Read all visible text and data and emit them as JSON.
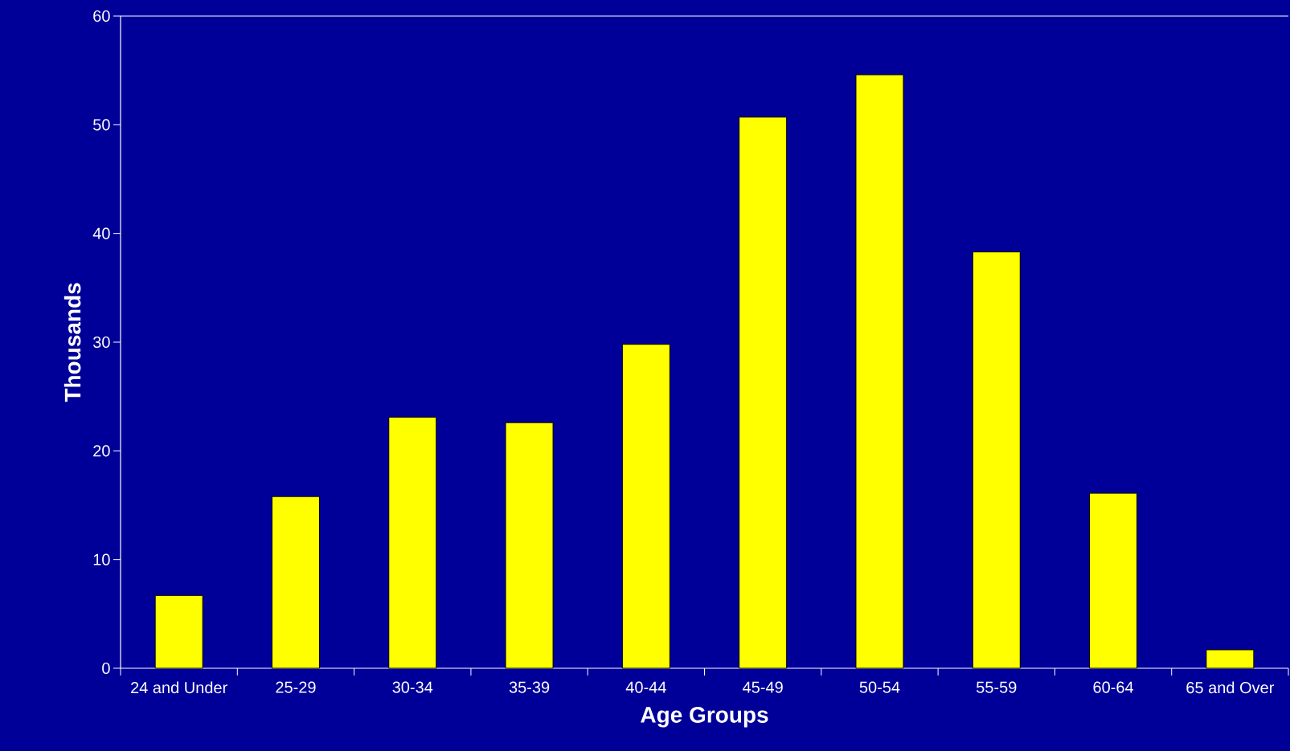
{
  "chart_data": {
    "type": "bar",
    "xlabel": "Age Groups",
    "ylabel": "Thousands",
    "categories": [
      "24 and Under",
      "25-29",
      "30-34",
      "35-39",
      "40-44",
      "45-49",
      "50-54",
      "55-59",
      "60-64",
      "65 and Over"
    ],
    "values": [
      6.7,
      15.8,
      23.1,
      22.6,
      29.8,
      50.7,
      54.6,
      38.3,
      16.1,
      1.7
    ],
    "color": "#ffff00",
    "ylim": [
      0,
      60
    ],
    "yticks": [
      0,
      10,
      20,
      30,
      40,
      50,
      60
    ]
  }
}
